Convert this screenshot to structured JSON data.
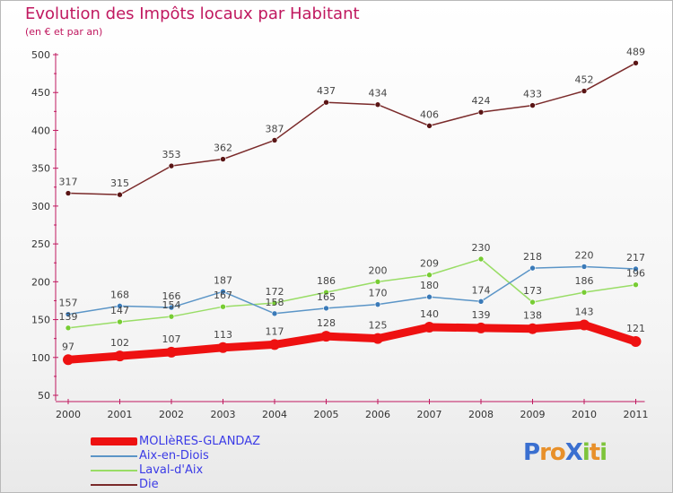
{
  "title": "Evolution des Impôts locaux par Habitant",
  "subtitle": "(en € et par an)",
  "logo": "ProXiti",
  "colors": {
    "title": "#c0185f",
    "legend_text": "#3b3be6",
    "series": [
      "#ee1111",
      "#5b95c7",
      "#99dd66",
      "#7a2a2a"
    ],
    "markers": [
      "#ee1111",
      "#3a7ab8",
      "#77cc33",
      "#5a1515"
    ]
  },
  "chart_data": {
    "type": "line",
    "title": "Evolution des Impôts locaux par Habitant",
    "subtitle": "(en € et par an)",
    "xlabel": "",
    "ylabel": "",
    "x": [
      "2000",
      "2001",
      "2002",
      "2003",
      "2004",
      "2005",
      "2006",
      "2007",
      "2008",
      "2009",
      "2010",
      "2011"
    ],
    "ylim": [
      50,
      500
    ],
    "yticks": [
      50,
      100,
      150,
      200,
      250,
      300,
      350,
      400,
      450,
      500
    ],
    "grid": false,
    "legend": "bottom-left",
    "series": [
      {
        "name": "MOLIèRES-GLANDAZ",
        "values": [
          97,
          102,
          107,
          113,
          117,
          128,
          125,
          140,
          139,
          138,
          143,
          121
        ],
        "labels": [
          "97",
          "102",
          "107",
          "113",
          "117",
          "128",
          "125",
          "140",
          "139",
          "138",
          "143",
          "121"
        ]
      },
      {
        "name": "Aix-en-Diois",
        "values": [
          157,
          168,
          166,
          187,
          158,
          165,
          170,
          180,
          174,
          218,
          220,
          217
        ],
        "labels": [
          "157",
          "168",
          "166",
          "187",
          "158",
          "165",
          "170",
          "180",
          "174",
          "218",
          "220",
          "217"
        ]
      },
      {
        "name": "Laval-d'Aix",
        "values": [
          139,
          147,
          154,
          167,
          172,
          186,
          200,
          209,
          230,
          173,
          186,
          196
        ],
        "labels": [
          "139",
          "147",
          "154",
          "167",
          "172",
          "186",
          "200",
          "209",
          "230",
          "173",
          "186",
          "196"
        ]
      },
      {
        "name": "Die",
        "values": [
          317,
          315,
          353,
          362,
          387,
          437,
          434,
          406,
          424,
          433,
          452,
          489
        ],
        "labels": [
          "317",
          "315",
          "353",
          "362",
          "387",
          "437",
          "434",
          "406",
          "424",
          "433",
          "452",
          "489"
        ]
      }
    ]
  }
}
